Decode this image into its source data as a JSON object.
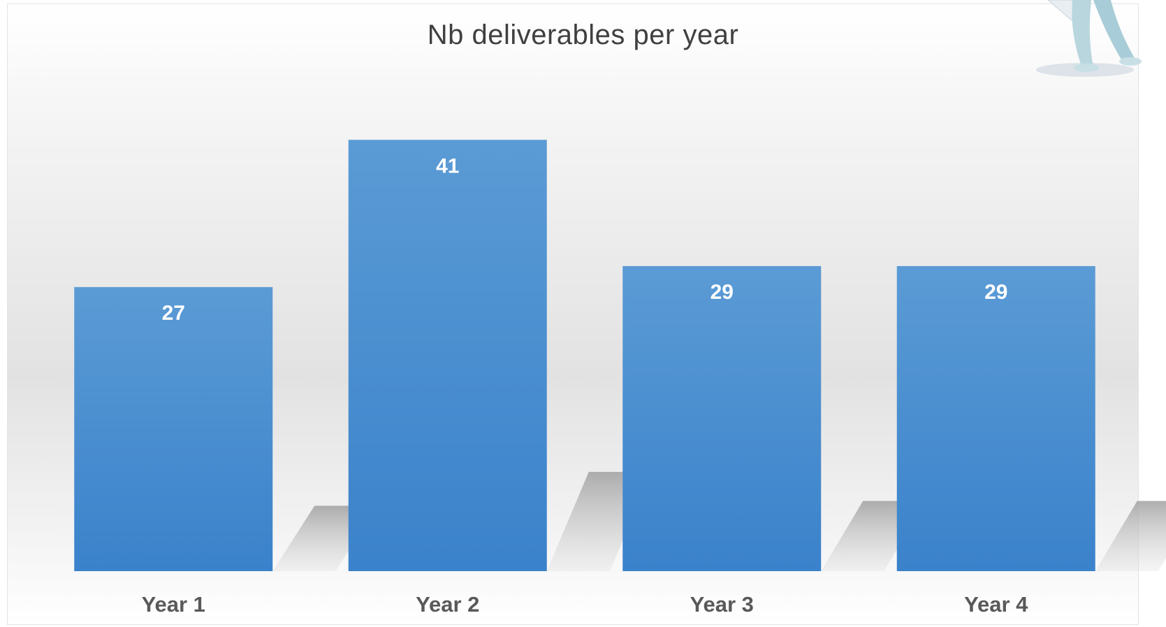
{
  "chart_data": {
    "type": "bar",
    "title": "Nb deliverables per year",
    "categories": [
      "Year 1",
      "Year 2",
      "Year 3",
      "Year 4"
    ],
    "values": [
      27,
      41,
      29,
      29
    ],
    "data_labels": true,
    "ylim": [
      0,
      45
    ],
    "grid": false,
    "legend": "none",
    "bar_color_top": "#5b9bd5",
    "bar_color_bottom": "#3a82cb",
    "label_color": "#ffffff",
    "tick_label_color": "#595959"
  },
  "decoration": {
    "icon": "person-figure-icon"
  }
}
